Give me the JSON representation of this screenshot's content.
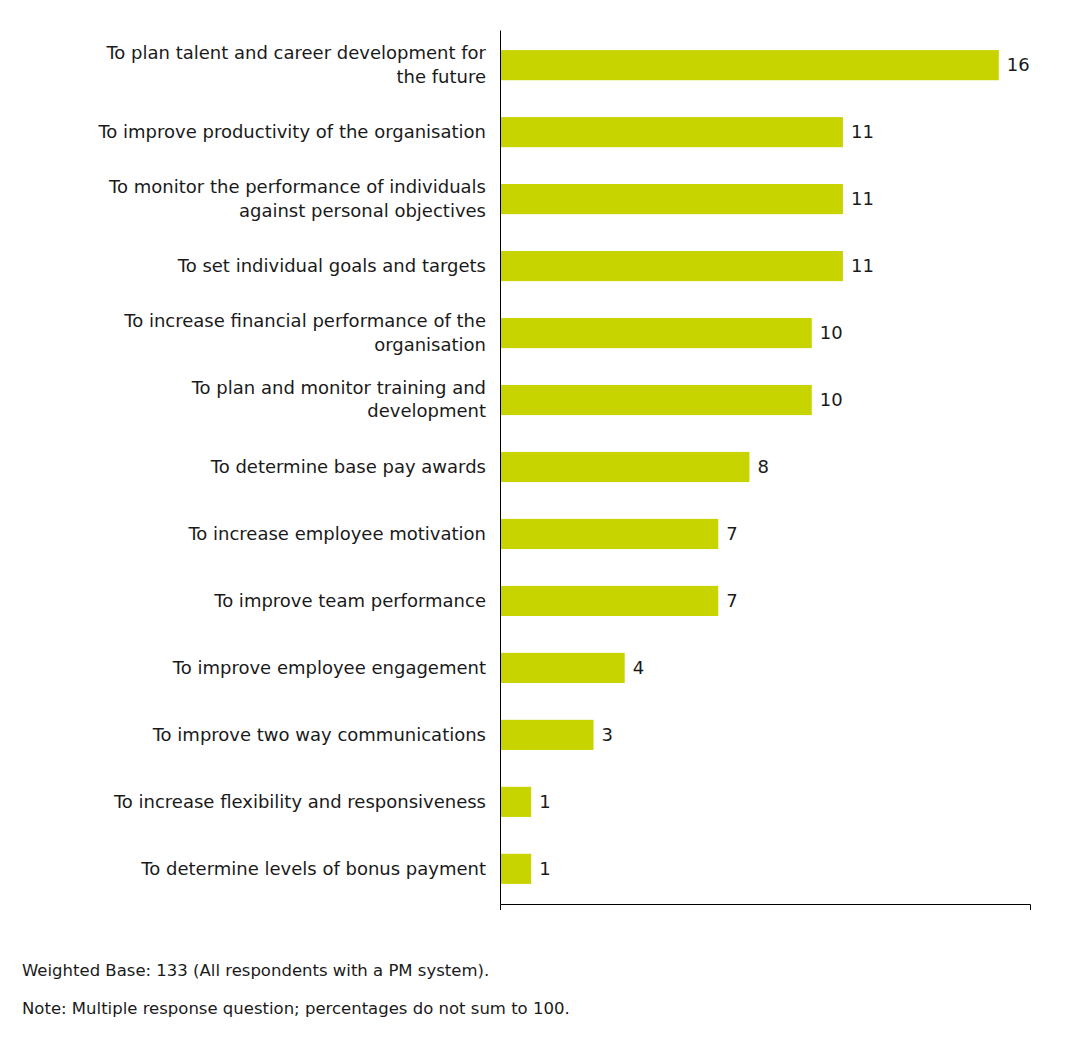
{
  "chart_data": {
    "type": "bar",
    "orientation": "horizontal",
    "categories": [
      "To determine levels of bonus payment",
      "To increase flexibility and responsiveness",
      "To improve two way communications",
      "To improve employee engagement",
      "To improve team performance",
      "To increase employee motivation",
      "To determine base pay awards",
      "To plan and monitor training and\ndevelopment",
      "To increase financial performance of the\norganisation",
      "To set individual goals and targets",
      "To monitor the performance of individuals\nagainst personal objectives",
      "To improve productivity of the organisation",
      "To plan talent and career development for\nthe future"
    ],
    "values": [
      1,
      1,
      3,
      4,
      7,
      7,
      8,
      10,
      10,
      11,
      11,
      11,
      16
    ],
    "color": "#C8D400",
    "xlim": [
      0,
      17
    ],
    "data_labels": true,
    "tick_labels": "y",
    "grid": false,
    "annotations": [
      "Weighted Base: 133 (All respondents with a PM system).",
      "Note: Multiple response question; percentages do not sum to 100."
    ]
  }
}
